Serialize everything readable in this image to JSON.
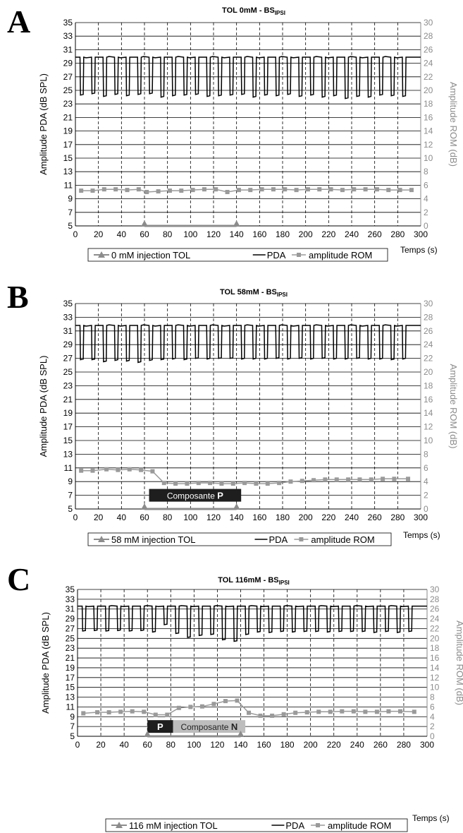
{
  "chart_data": [
    {
      "type": "line",
      "panel_label": "A",
      "title": "TOL 0mM - BS",
      "title_sub": "IPSI",
      "xlabel": "Temps (s)",
      "ylabel_left": "Amplitude PDA (dB SPL)",
      "ylabel_right": "Amplitude ROM (dB)",
      "xlim": [
        0,
        300
      ],
      "ylim_left": [
        5,
        35
      ],
      "ylim_right": [
        0,
        30
      ],
      "x_ticks": [
        0,
        20,
        40,
        60,
        80,
        100,
        120,
        140,
        160,
        180,
        200,
        220,
        240,
        260,
        280,
        300
      ],
      "y_left_ticks": [
        5,
        7,
        9,
        11,
        13,
        15,
        17,
        19,
        21,
        23,
        25,
        27,
        29,
        31,
        33,
        35
      ],
      "y_right_ticks": [
        0,
        2,
        4,
        6,
        8,
        10,
        12,
        14,
        16,
        18,
        20,
        22,
        24,
        26,
        28,
        30
      ],
      "grid": "horizontal solid, vertical dashed",
      "legend": [
        "0 mM injection TOL",
        "PDA",
        "amplitude ROM"
      ],
      "legend_position": "bottom",
      "injection": {
        "x": [
          60,
          140
        ],
        "y_right": 0
      },
      "pda": {
        "high": 29.9,
        "low": 24.3,
        "period": 10,
        "dip_width": 3.2,
        "start": 4,
        "line": 30.4,
        "dip_depths": [
          24.3,
          24.5,
          24.1,
          24.4,
          24.2,
          24.4,
          24.5,
          24.0,
          24.2,
          24.3,
          24.4,
          24.1,
          24.2,
          24.3,
          24.4,
          24.0,
          24.3,
          24.2,
          24.4,
          24.1,
          24.3,
          24.0,
          24.2,
          23.8,
          24.1,
          24.0,
          24.3,
          24.2,
          24.1
        ]
      },
      "rom": {
        "x": [
          5,
          15,
          25,
          35,
          45,
          55,
          62,
          72,
          82,
          92,
          102,
          112,
          122,
          132,
          142,
          152,
          162,
          172,
          182,
          192,
          202,
          212,
          222,
          232,
          242,
          252,
          262,
          272,
          282,
          292
        ],
        "y": [
          5.2,
          5.2,
          5.4,
          5.4,
          5.3,
          5.4,
          5.0,
          5.1,
          5.2,
          5.2,
          5.3,
          5.4,
          5.4,
          5.0,
          5.3,
          5.3,
          5.4,
          5.4,
          5.4,
          5.3,
          5.4,
          5.4,
          5.4,
          5.3,
          5.4,
          5.4,
          5.4,
          5.3,
          5.3,
          5.3
        ]
      },
      "component_box": null
    },
    {
      "type": "line",
      "panel_label": "B",
      "title": "TOL 58mM - BS",
      "title_sub": "IPSI",
      "xlabel": "Temps (s)",
      "ylabel_left": "Amplitude PDA (dB SPL)",
      "ylabel_right": "Amplitude ROM (dB)",
      "xlim": [
        0,
        300
      ],
      "ylim_left": [
        5,
        35
      ],
      "ylim_right": [
        0,
        30
      ],
      "x_ticks": [
        0,
        20,
        40,
        60,
        80,
        100,
        120,
        140,
        160,
        180,
        200,
        220,
        240,
        260,
        280,
        300
      ],
      "y_left_ticks": [
        5,
        7,
        9,
        11,
        13,
        15,
        17,
        19,
        21,
        23,
        25,
        27,
        29,
        31,
        33,
        35
      ],
      "y_right_ticks": [
        0,
        2,
        4,
        6,
        8,
        10,
        12,
        14,
        16,
        18,
        20,
        22,
        24,
        26,
        28,
        30
      ],
      "grid": "horizontal solid, vertical dashed",
      "legend": [
        "58 mM injection TOL",
        "PDA",
        "amplitude ROM"
      ],
      "legend_position": "bottom",
      "injection": {
        "x": [
          60,
          140
        ],
        "y_right": 0
      },
      "pda": {
        "high": 31.8,
        "low": 26.8,
        "period": 10,
        "dip_width": 3.2,
        "start": 4,
        "line": 9.3,
        "dip_depths": [
          26.8,
          26.8,
          26.5,
          26.7,
          26.6,
          26.4,
          26.7,
          26.8,
          26.9,
          26.8,
          27.0,
          26.9,
          27.0,
          27.0,
          26.9,
          26.9,
          26.9,
          27.0,
          26.9,
          27.0,
          26.9,
          27.0,
          26.9,
          26.9,
          27.0,
          26.9,
          26.9,
          26.8,
          26.9
        ]
      },
      "rom": {
        "x": [
          5,
          15,
          27,
          37,
          47,
          57,
          67,
          77,
          87,
          97,
          107,
          117,
          127,
          137,
          147,
          157,
          167,
          177,
          187,
          197,
          207,
          217,
          227,
          237,
          247,
          257,
          267,
          277,
          289
        ],
        "y": [
          5.6,
          5.6,
          5.8,
          5.7,
          5.8,
          5.7,
          5.5,
          3.8,
          3.7,
          3.7,
          3.8,
          3.8,
          3.7,
          3.7,
          3.8,
          3.7,
          3.7,
          3.8,
          4.0,
          4.1,
          4.2,
          4.3,
          4.3,
          4.3,
          4.3,
          4.3,
          4.4,
          4.4,
          4.4
        ]
      },
      "component_box": {
        "label": "Composante",
        "dark": "P",
        "light": ""
      }
    },
    {
      "type": "line",
      "panel_label": "C",
      "title": "TOL 116mM - BS",
      "title_sub": "IPSI",
      "xlabel": "Temps (s)",
      "ylabel_left": "Amplitude PDA (dB SPL)",
      "ylabel_right": "Amplitude ROM (dB)",
      "xlim": [
        0,
        300
      ],
      "ylim_left": [
        5,
        35
      ],
      "ylim_right": [
        0,
        30
      ],
      "x_ticks": [
        0,
        20,
        40,
        60,
        80,
        100,
        120,
        140,
        160,
        180,
        200,
        220,
        240,
        260,
        280,
        300
      ],
      "y_left_ticks": [
        5,
        7,
        9,
        11,
        13,
        15,
        17,
        19,
        21,
        23,
        25,
        27,
        29,
        31,
        33,
        35
      ],
      "y_right_ticks": [
        0,
        2,
        4,
        6,
        8,
        10,
        12,
        14,
        16,
        18,
        20,
        22,
        24,
        26,
        28,
        30
      ],
      "grid": "horizontal solid, vertical dashed",
      "legend": [
        "116 mM injection TOL",
        "PDA",
        "amplitude ROM"
      ],
      "legend_position": "bottom",
      "injection": {
        "x": [
          60,
          140
        ],
        "y_right": 0
      },
      "pda": {
        "high": 31.6,
        "low": 26.5,
        "period": 10,
        "dip_width": 3.2,
        "start": 4,
        "line": 31.2,
        "dip_depths": [
          26.5,
          26.6,
          26.5,
          26.6,
          26.5,
          26.6,
          26.3,
          27.8,
          26.0,
          25.2,
          25.6,
          25.8,
          24.7,
          24.4,
          25.8,
          26.3,
          26.2,
          26.4,
          26.3,
          26.4,
          26.4,
          26.3,
          26.4,
          26.4,
          26.4,
          26.2,
          26.4,
          26.2,
          26.4
        ]
      },
      "rom": {
        "x": [
          5,
          17,
          27,
          37,
          47,
          57,
          67,
          77,
          87,
          97,
          107,
          117,
          127,
          137,
          147,
          157,
          167,
          177,
          187,
          197,
          207,
          217,
          227,
          237,
          247,
          257,
          267,
          277,
          289
        ],
        "y": [
          4.7,
          4.9,
          4.9,
          5.0,
          5.1,
          5.0,
          4.4,
          4.4,
          5.8,
          6.0,
          6.1,
          6.6,
          7.2,
          7.3,
          4.8,
          4.2,
          4.2,
          4.5,
          4.8,
          4.9,
          5.0,
          5.0,
          5.1,
          5.1,
          5.0,
          5.0,
          5.1,
          5.1,
          5.0
        ]
      },
      "component_box": {
        "label": "Composante",
        "dark": "P",
        "light": "N"
      }
    }
  ]
}
